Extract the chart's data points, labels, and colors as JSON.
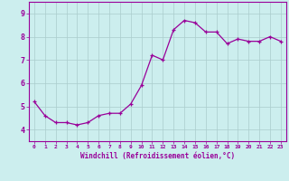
{
  "hours": [
    0,
    1,
    2,
    3,
    4,
    5,
    6,
    7,
    8,
    9,
    10,
    11,
    12,
    13,
    14,
    15,
    16,
    17,
    18,
    19,
    20,
    21,
    22,
    23
  ],
  "values": [
    5.2,
    4.6,
    4.3,
    4.3,
    4.2,
    4.3,
    4.6,
    4.7,
    4.7,
    5.1,
    5.9,
    7.2,
    7.0,
    8.3,
    8.7,
    8.6,
    8.2,
    8.2,
    7.7,
    7.9,
    7.8,
    7.8,
    8.0,
    7.8
  ],
  "ylim": [
    3.5,
    9.5
  ],
  "yticks": [
    4,
    5,
    6,
    7,
    8,
    9
  ],
  "xlim": [
    -0.5,
    23.5
  ],
  "xticks": [
    0,
    1,
    2,
    3,
    4,
    5,
    6,
    7,
    8,
    9,
    10,
    11,
    12,
    13,
    14,
    15,
    16,
    17,
    18,
    19,
    20,
    21,
    22,
    23
  ],
  "xlabel": "Windchill (Refroidissement éolien,°C)",
  "line_color": "#990099",
  "marker": "+",
  "marker_size": 3,
  "bg_color": "#CCEEEE",
  "grid_color": "#AACCCC",
  "title": ""
}
